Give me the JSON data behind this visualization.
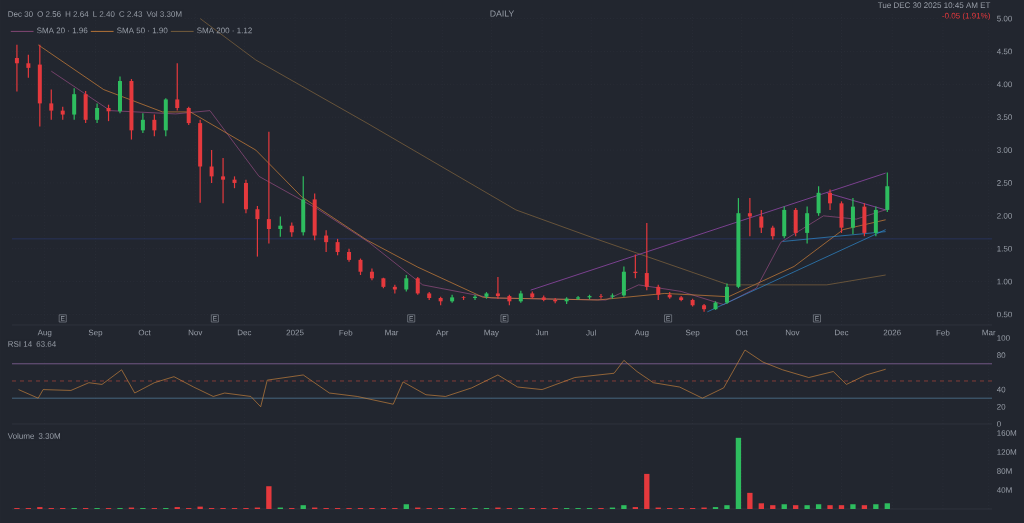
{
  "chart_data": [
    {
      "type": "candlestick",
      "title": "DAILY",
      "subtitle": "Tue DEC 30 2025 10:45 AM ET",
      "annotations": [
        "Dec 30",
        "O 2.56",
        "H 2.64",
        "L 2.40",
        "C 2.43",
        "Vol 3.30M",
        "-0.05 (1.91%)",
        {
          "text": "E",
          "x": "2024-08-12",
          "y": 0.44
        },
        {
          "text": "E",
          "x": "2024-11-13",
          "y": 0.44
        },
        {
          "text": "E",
          "x": "2025-03-13",
          "y": 0.44
        },
        {
          "text": "E",
          "x": "2025-05-09",
          "y": 0.44
        },
        {
          "text": "E",
          "x": "2025-08-17",
          "y": 0.44
        },
        {
          "text": "E",
          "x": "2025-11-16",
          "y": 0.44
        }
      ],
      "x": [
        "2024-07-15",
        "2024-07-22",
        "2024-07-29",
        "2024-08-05",
        "2024-08-12",
        "2024-08-19",
        "2024-08-26",
        "2024-09-02",
        "2024-09-09",
        "2024-09-16",
        "2024-09-23",
        "2024-09-30",
        "2024-10-07",
        "2024-10-14",
        "2024-10-21",
        "2024-10-28",
        "2024-11-04",
        "2024-11-11",
        "2024-11-18",
        "2024-11-25",
        "2024-12-02",
        "2024-12-09",
        "2024-12-16",
        "2024-12-23",
        "2024-12-30",
        "2025-01-06",
        "2025-01-13",
        "2025-01-20",
        "2025-01-27",
        "2025-02-03",
        "2025-02-10",
        "2025-02-17",
        "2025-02-24",
        "2025-03-03",
        "2025-03-10",
        "2025-03-17",
        "2025-03-24",
        "2025-03-31",
        "2025-04-07",
        "2025-04-14",
        "2025-04-21",
        "2025-04-28",
        "2025-05-05",
        "2025-05-12",
        "2025-05-19",
        "2025-05-26",
        "2025-06-02",
        "2025-06-09",
        "2025-06-16",
        "2025-06-23",
        "2025-06-30",
        "2025-07-07",
        "2025-07-14",
        "2025-07-21",
        "2025-07-28",
        "2025-08-04",
        "2025-08-11",
        "2025-08-18",
        "2025-08-25",
        "2025-09-01",
        "2025-09-08",
        "2025-09-15",
        "2025-09-22",
        "2025-09-29",
        "2025-10-06",
        "2025-10-13",
        "2025-10-20",
        "2025-10-27",
        "2025-11-03",
        "2025-11-10",
        "2025-11-17",
        "2025-11-24",
        "2025-12-01",
        "2025-12-08",
        "2025-12-15",
        "2025-12-22",
        "2025-12-29"
      ],
      "ohlc": [
        [
          4.4,
          4.6,
          3.89,
          4.32
        ],
        [
          4.32,
          4.45,
          4.1,
          4.25
        ],
        [
          4.3,
          4.6,
          3.36,
          3.71
        ],
        [
          3.71,
          3.92,
          3.46,
          3.6
        ],
        [
          3.6,
          3.66,
          3.46,
          3.54
        ],
        [
          3.54,
          3.94,
          3.46,
          3.85
        ],
        [
          3.85,
          3.9,
          3.41,
          3.46
        ],
        [
          3.46,
          3.71,
          3.41,
          3.64
        ],
        [
          3.64,
          3.69,
          3.44,
          3.59
        ],
        [
          3.59,
          4.12,
          3.56,
          4.05
        ],
        [
          4.05,
          4.08,
          3.16,
          3.3
        ],
        [
          3.3,
          3.56,
          3.26,
          3.46
        ],
        [
          3.46,
          3.54,
          3.21,
          3.3
        ],
        [
          3.3,
          3.79,
          3.21,
          3.77
        ],
        [
          3.77,
          4.32,
          3.6,
          3.64
        ],
        [
          3.64,
          3.66,
          3.38,
          3.41
        ],
        [
          3.41,
          3.46,
          2.2,
          2.75
        ],
        [
          2.75,
          3.0,
          2.5,
          2.6
        ],
        [
          2.6,
          2.88,
          2.19,
          2.55
        ],
        [
          2.55,
          2.6,
          2.42,
          2.5
        ],
        [
          2.5,
          2.55,
          2.04,
          2.1
        ],
        [
          2.1,
          2.15,
          1.38,
          1.95
        ],
        [
          1.95,
          3.28,
          1.58,
          1.8
        ],
        [
          1.8,
          1.99,
          1.68,
          1.85
        ],
        [
          1.85,
          1.9,
          1.68,
          1.75
        ],
        [
          1.75,
          2.6,
          1.7,
          2.25
        ],
        [
          2.25,
          2.34,
          1.63,
          1.7
        ],
        [
          1.7,
          1.78,
          1.45,
          1.6
        ],
        [
          1.6,
          1.65,
          1.4,
          1.45
        ],
        [
          1.45,
          1.5,
          1.3,
          1.33
        ],
        [
          1.33,
          1.35,
          1.1,
          1.15
        ],
        [
          1.15,
          1.2,
          1.02,
          1.05
        ],
        [
          1.05,
          1.06,
          0.9,
          0.92
        ],
        [
          0.92,
          0.95,
          0.82,
          0.88
        ],
        [
          0.88,
          1.1,
          0.85,
          1.05
        ],
        [
          1.05,
          1.07,
          0.8,
          0.82
        ],
        [
          0.82,
          0.84,
          0.72,
          0.75
        ],
        [
          0.75,
          0.77,
          0.64,
          0.7
        ],
        [
          0.7,
          0.8,
          0.68,
          0.76
        ],
        [
          0.76,
          0.78,
          0.72,
          0.75
        ],
        [
          0.75,
          0.8,
          0.72,
          0.77
        ],
        [
          0.77,
          0.84,
          0.74,
          0.82
        ],
        [
          0.82,
          1.07,
          0.74,
          0.78
        ],
        [
          0.78,
          0.8,
          0.64,
          0.7
        ],
        [
          0.7,
          0.86,
          0.68,
          0.82
        ],
        [
          0.82,
          0.85,
          0.74,
          0.76
        ],
        [
          0.76,
          0.79,
          0.7,
          0.72
        ],
        [
          0.72,
          0.75,
          0.67,
          0.7
        ],
        [
          0.7,
          0.76,
          0.66,
          0.74
        ],
        [
          0.74,
          0.78,
          0.72,
          0.76
        ],
        [
          0.76,
          0.8,
          0.73,
          0.78
        ],
        [
          0.78,
          0.81,
          0.74,
          0.77
        ],
        [
          0.77,
          0.82,
          0.74,
          0.79
        ],
        [
          0.79,
          1.23,
          0.77,
          1.15
        ],
        [
          1.15,
          1.41,
          1.05,
          1.13
        ],
        [
          1.13,
          1.89,
          0.87,
          0.92
        ],
        [
          0.92,
          0.95,
          0.72,
          0.8
        ],
        [
          0.8,
          0.84,
          0.74,
          0.76
        ],
        [
          0.76,
          0.78,
          0.7,
          0.72
        ],
        [
          0.72,
          0.74,
          0.62,
          0.64
        ],
        [
          0.64,
          0.66,
          0.54,
          0.58
        ],
        [
          0.58,
          0.7,
          0.57,
          0.68
        ],
        [
          0.68,
          0.97,
          0.66,
          0.92
        ],
        [
          0.92,
          2.27,
          0.9,
          2.04
        ],
        [
          2.04,
          2.27,
          1.69,
          1.99
        ],
        [
          1.99,
          2.09,
          1.74,
          1.82
        ],
        [
          1.82,
          1.85,
          1.64,
          1.69
        ],
        [
          1.69,
          2.14,
          1.66,
          2.09
        ],
        [
          2.09,
          2.12,
          1.69,
          1.74
        ],
        [
          1.74,
          2.14,
          1.58,
          2.04
        ],
        [
          2.04,
          2.45,
          2.0,
          2.35
        ],
        [
          2.35,
          2.4,
          2.09,
          2.19
        ],
        [
          2.19,
          2.22,
          1.74,
          1.82
        ],
        [
          1.82,
          2.27,
          1.72,
          2.14
        ],
        [
          2.14,
          2.19,
          1.69,
          1.74
        ],
        [
          1.74,
          2.14,
          1.69,
          2.09
        ],
        [
          2.09,
          2.66,
          2.06,
          2.45
        ]
      ],
      "colors": [
        "#e5393d",
        "#e5393d",
        "#e5393d",
        "#e5393d",
        "#e5393d",
        "#2ebd5f",
        "#e5393d",
        "#2ebd5f",
        "#e5393d",
        "#2ebd5f",
        "#e5393d",
        "#2ebd5f",
        "#e5393d",
        "#2ebd5f",
        "#e5393d",
        "#e5393d",
        "#e5393d",
        "#e5393d",
        "#e5393d",
        "#e5393d",
        "#e5393d",
        "#e5393d",
        "#e5393d",
        "#2ebd5f",
        "#e5393d",
        "#2ebd5f",
        "#e5393d",
        "#e5393d",
        "#e5393d",
        "#e5393d",
        "#e5393d",
        "#e5393d",
        "#e5393d",
        "#e5393d",
        "#2ebd5f",
        "#e5393d",
        "#e5393d",
        "#e5393d",
        "#2ebd5f",
        "#e5393d",
        "#2ebd5f",
        "#2ebd5f",
        "#e5393d",
        "#e5393d",
        "#2ebd5f",
        "#e5393d",
        "#e5393d",
        "#e5393d",
        "#2ebd5f",
        "#2ebd5f",
        "#2ebd5f",
        "#e5393d",
        "#2ebd5f",
        "#2ebd5f",
        "#e5393d",
        "#e5393d",
        "#e5393d",
        "#e5393d",
        "#e5393d",
        "#e5393d",
        "#e5393d",
        "#2ebd5f",
        "#2ebd5f",
        "#2ebd5f",
        "#e5393d",
        "#e5393d",
        "#e5393d",
        "#2ebd5f",
        "#e5393d",
        "#2ebd5f",
        "#2ebd5f",
        "#e5393d",
        "#e5393d",
        "#2ebd5f",
        "#e5393d",
        "#2ebd5f",
        "#2ebd5f"
      ],
      "series": [
        {
          "type": "line",
          "name": "SMA 20 · 1.96",
          "color": "#9c4f86",
          "x": [
            "2024-08-05",
            "2024-09-10",
            "2024-10-20",
            "2024-11-10",
            "2024-12-10",
            "2025-01-15",
            "2025-02-15",
            "2025-03-20",
            "2025-05-01",
            "2025-07-10",
            "2025-07-30",
            "2025-08-25",
            "2025-09-20",
            "2025-10-10",
            "2025-10-25",
            "2025-11-20",
            "2025-12-10",
            "2025-12-29"
          ],
          "values": [
            4.2,
            3.6,
            3.55,
            3.6,
            2.6,
            2.1,
            1.6,
            0.95,
            0.75,
            0.72,
            0.95,
            0.85,
            0.65,
            0.9,
            1.6,
            2.0,
            1.95,
            2.1
          ]
        },
        {
          "type": "line",
          "name": "SMA 50 · 1.90",
          "color": "#d9863a",
          "x": [
            "2024-07-28",
            "2024-09-06",
            "2024-10-12",
            "2024-10-29",
            "2024-12-08",
            "2025-01-05",
            "2025-02-14",
            "2025-03-17",
            "2025-04-26",
            "2025-05-06",
            "2025-07-05",
            "2025-08-15",
            "2025-09-23",
            "2025-11-02",
            "2025-12-02",
            "2025-12-28"
          ],
          "values": [
            4.6,
            3.92,
            3.58,
            3.58,
            3.0,
            2.29,
            1.63,
            1.22,
            0.76,
            0.75,
            0.72,
            0.82,
            0.77,
            1.23,
            1.79,
            1.94
          ]
        },
        {
          "type": "line",
          "name": "SMA 200 · 1.12",
          "color": "#8a6a40",
          "x": [
            "2024-11-04",
            "2024-12-08",
            "2025-02-14",
            "2025-05-16",
            "2025-07-05",
            "2025-09-23",
            "2025-11-22",
            "2025-12-28"
          ],
          "values": [
            5.0,
            4.37,
            3.41,
            2.09,
            1.64,
            0.95,
            0.95,
            1.1
          ]
        },
        {
          "type": "line",
          "color": "#a84fc0",
          "x": [
            "2025-05-25",
            "2025-12-28"
          ],
          "values": [
            0.87,
            2.65
          ]
        },
        {
          "type": "line",
          "color": "#a84fc0",
          "x": [
            "2025-11-22",
            "2025-12-28"
          ],
          "values": [
            2.35,
            2.09
          ]
        },
        {
          "type": "line",
          "color": "#2f8fd8",
          "x": [
            "2025-09-10",
            "2025-12-28"
          ],
          "values": [
            0.54,
            1.79
          ]
        },
        {
          "type": "line",
          "color": "#2f8fd8",
          "x": [
            "2025-10-26",
            "2025-12-28"
          ],
          "values": [
            1.61,
            1.76
          ]
        }
      ],
      "ref_lines": [
        {
          "axis": "y",
          "value": 1.65,
          "color": "#2b3a70"
        }
      ],
      "legend": "top left",
      "grid": true,
      "xlim": [
        "2024-07-12",
        "2026-03-03"
      ],
      "ylim": [
        0.34,
        5.1
      ],
      "xticks": [
        {
          "value": "2024-08-01",
          "label": "Aug"
        },
        {
          "value": "2024-09-01",
          "label": "Sep"
        },
        {
          "value": "2024-10-01",
          "label": "Oct"
        },
        {
          "value": "2024-11-01",
          "label": "Nov"
        },
        {
          "value": "2024-12-01",
          "label": "Dec"
        },
        {
          "value": "2025-01-01",
          "label": "2025"
        },
        {
          "value": "2025-02-01",
          "label": "Feb"
        },
        {
          "value": "2025-03-01",
          "label": "Mar"
        },
        {
          "value": "2025-04-01",
          "label": "Apr"
        },
        {
          "value": "2025-05-01",
          "label": "May"
        },
        {
          "value": "2025-06-01",
          "label": "Jun"
        },
        {
          "value": "2025-07-01",
          "label": "Jul"
        },
        {
          "value": "2025-08-01",
          "label": "Aug"
        },
        {
          "value": "2025-09-01",
          "label": "Sep"
        },
        {
          "value": "2025-10-01",
          "label": "Oct"
        },
        {
          "value": "2025-11-01",
          "label": "Nov"
        },
        {
          "value": "2025-12-01",
          "label": "Dec"
        },
        {
          "value": "2026-01-01",
          "label": "2026"
        },
        {
          "value": "2026-02-01",
          "label": "Feb"
        },
        {
          "value": "2026-03-01",
          "label": "Mar"
        }
      ],
      "yticks": [
        {
          "value": 0.5,
          "label": "0.50"
        },
        {
          "value": 1.0,
          "label": "1.00"
        },
        {
          "value": 1.5,
          "label": "1.50"
        },
        {
          "value": 2.0,
          "label": "2.00"
        },
        {
          "value": 2.5,
          "label": "2.50"
        },
        {
          "value": 3.0,
          "label": "3.00"
        },
        {
          "value": 3.5,
          "label": "3.50"
        },
        {
          "value": 4.0,
          "label": "4.00"
        },
        {
          "value": 4.5,
          "label": "4.50"
        },
        {
          "value": 5.0,
          "label": "5.00"
        }
      ]
    },
    {
      "type": "line",
      "color": "#c8843c",
      "annotations": [
        "RSI 14",
        "63.64"
      ],
      "x": [
        "2024-07-16",
        "2024-07-28",
        "2024-07-31",
        "2024-08-17",
        "2024-08-28",
        "2024-09-05",
        "2024-09-17",
        "2024-09-25",
        "2024-10-07",
        "2024-10-19",
        "2024-10-31",
        "2024-11-12",
        "2024-11-19",
        "2024-12-05",
        "2024-12-11",
        "2024-12-15",
        "2025-01-06",
        "2025-01-22",
        "2025-02-08",
        "2025-03-02",
        "2025-03-08",
        "2025-03-22",
        "2025-04-03",
        "2025-04-19",
        "2025-05-05",
        "2025-05-17",
        "2025-06-01",
        "2025-06-21",
        "2025-07-15",
        "2025-07-21",
        "2025-07-29",
        "2025-08-08",
        "2025-08-24",
        "2025-09-07",
        "2025-09-20",
        "2025-10-03",
        "2025-10-14",
        "2025-10-26",
        "2025-11-11",
        "2025-11-26",
        "2025-12-04",
        "2025-12-16",
        "2025-12-28"
      ],
      "values": [
        40,
        30,
        40,
        39,
        48,
        46,
        63,
        36,
        48,
        55,
        43,
        32,
        36,
        32,
        20,
        51,
        57,
        36,
        32,
        23,
        49,
        34,
        32,
        42,
        57,
        43,
        40,
        54,
        59,
        74,
        61,
        48,
        43,
        30,
        42,
        86,
        72,
        63,
        54,
        61,
        46,
        57,
        63.64
      ],
      "ref_lines": [
        {
          "axis": "y",
          "value": 70,
          "color": "#9b6fb0"
        },
        {
          "axis": "y",
          "value": 50,
          "color": "#b5483c",
          "line_style": "dashed"
        },
        {
          "axis": "y",
          "value": 30,
          "color": "#5a86a8"
        }
      ],
      "grid": "x",
      "tick_labels": "y",
      "xlim": [
        "2024-07-12",
        "2026-03-03"
      ],
      "ylim": [
        0,
        100
      ],
      "xticks": [
        "2024-08-01",
        "2024-09-01",
        "2024-10-01",
        "2024-11-01",
        "2024-12-01",
        "2025-01-01",
        "2025-02-01",
        "2025-03-01",
        "2025-04-01",
        "2025-05-01",
        "2025-06-01",
        "2025-07-01",
        "2025-08-01",
        "2025-09-01",
        "2025-10-01",
        "2025-11-01",
        "2025-12-01",
        "2026-01-01",
        "2026-02-01",
        "2026-03-01"
      ],
      "yticks": [
        0,
        20,
        40,
        80,
        100
      ]
    },
    {
      "type": "bar",
      "annotations": [
        "Volume",
        "3.30M"
      ],
      "x": [
        "2024-07-15",
        "2024-07-22",
        "2024-07-29",
        "2024-08-05",
        "2024-08-12",
        "2024-08-19",
        "2024-08-26",
        "2024-09-02",
        "2024-09-09",
        "2024-09-16",
        "2024-09-23",
        "2024-09-30",
        "2024-10-07",
        "2024-10-14",
        "2024-10-21",
        "2024-10-28",
        "2024-11-04",
        "2024-11-11",
        "2024-11-18",
        "2024-11-25",
        "2024-12-02",
        "2024-12-09",
        "2024-12-16",
        "2024-12-23",
        "2024-12-30",
        "2025-01-06",
        "2025-01-13",
        "2025-01-20",
        "2025-01-27",
        "2025-02-03",
        "2025-02-10",
        "2025-02-17",
        "2025-02-24",
        "2025-03-03",
        "2025-03-10",
        "2025-03-17",
        "2025-03-24",
        "2025-03-31",
        "2025-04-07",
        "2025-04-14",
        "2025-04-21",
        "2025-04-28",
        "2025-05-05",
        "2025-05-12",
        "2025-05-19",
        "2025-05-26",
        "2025-06-02",
        "2025-06-09",
        "2025-06-16",
        "2025-06-23",
        "2025-06-30",
        "2025-07-07",
        "2025-07-14",
        "2025-07-21",
        "2025-07-28",
        "2025-08-04",
        "2025-08-11",
        "2025-08-18",
        "2025-08-25",
        "2025-09-01",
        "2025-09-08",
        "2025-09-15",
        "2025-09-22",
        "2025-09-29",
        "2025-10-06",
        "2025-10-13",
        "2025-10-20",
        "2025-10-27",
        "2025-11-03",
        "2025-11-10",
        "2025-11-17",
        "2025-11-24",
        "2025-12-01",
        "2025-12-08",
        "2025-12-15",
        "2025-12-22",
        "2025-12-29"
      ],
      "values": [
        2,
        2,
        4,
        2,
        2,
        2,
        2,
        2,
        2,
        2,
        3,
        2,
        2,
        2,
        4,
        2,
        5,
        2,
        2,
        2,
        2,
        3,
        48,
        3,
        2,
        8,
        3,
        2,
        2,
        2,
        2,
        2,
        2,
        2,
        10,
        3,
        2,
        2,
        2,
        2,
        2,
        2,
        3,
        2,
        2,
        2,
        2,
        2,
        2,
        2,
        2,
        2,
        3,
        8,
        4,
        74,
        3,
        2,
        2,
        2,
        3,
        4,
        8,
        150,
        34,
        12,
        8,
        10,
        8,
        8,
        10,
        8,
        8,
        10,
        8,
        10,
        12
      ],
      "colors": [
        "#e5393d",
        "#e5393d",
        "#e5393d",
        "#e5393d",
        "#e5393d",
        "#2ebd5f",
        "#e5393d",
        "#2ebd5f",
        "#e5393d",
        "#2ebd5f",
        "#e5393d",
        "#2ebd5f",
        "#e5393d",
        "#2ebd5f",
        "#e5393d",
        "#e5393d",
        "#e5393d",
        "#e5393d",
        "#e5393d",
        "#e5393d",
        "#e5393d",
        "#e5393d",
        "#e5393d",
        "#2ebd5f",
        "#e5393d",
        "#2ebd5f",
        "#e5393d",
        "#e5393d",
        "#e5393d",
        "#e5393d",
        "#e5393d",
        "#e5393d",
        "#e5393d",
        "#e5393d",
        "#2ebd5f",
        "#e5393d",
        "#e5393d",
        "#e5393d",
        "#2ebd5f",
        "#e5393d",
        "#2ebd5f",
        "#2ebd5f",
        "#e5393d",
        "#e5393d",
        "#2ebd5f",
        "#e5393d",
        "#e5393d",
        "#e5393d",
        "#2ebd5f",
        "#2ebd5f",
        "#2ebd5f",
        "#e5393d",
        "#2ebd5f",
        "#2ebd5f",
        "#e5393d",
        "#e5393d",
        "#e5393d",
        "#e5393d",
        "#e5393d",
        "#e5393d",
        "#e5393d",
        "#2ebd5f",
        "#2ebd5f",
        "#2ebd5f",
        "#e5393d",
        "#e5393d",
        "#e5393d",
        "#2ebd5f",
        "#e5393d",
        "#2ebd5f",
        "#2ebd5f",
        "#e5393d",
        "#e5393d",
        "#2ebd5f",
        "#e5393d",
        "#2ebd5f",
        "#2ebd5f"
      ],
      "grid": "x",
      "tick_labels": "y",
      "xlim": [
        "2024-07-12",
        "2026-03-03"
      ],
      "ylim": [
        0,
        175
      ],
      "xticks": [
        "2024-08-01",
        "2024-09-01",
        "2024-10-01",
        "2024-11-01",
        "2024-12-01",
        "2025-01-01",
        "2025-02-01",
        "2025-03-01",
        "2025-04-01",
        "2025-05-01",
        "2025-06-01",
        "2025-07-01",
        "2025-08-01",
        "2025-09-01",
        "2025-10-01",
        "2025-11-01",
        "2025-12-01",
        "2026-01-01",
        "2026-02-01",
        "2026-03-01"
      ],
      "yticks": [
        {
          "value": 40,
          "label": "40M"
        },
        {
          "value": 80,
          "label": "80M"
        },
        {
          "value": 120,
          "label": "120M"
        },
        {
          "value": 160,
          "label": "160M"
        }
      ]
    }
  ]
}
